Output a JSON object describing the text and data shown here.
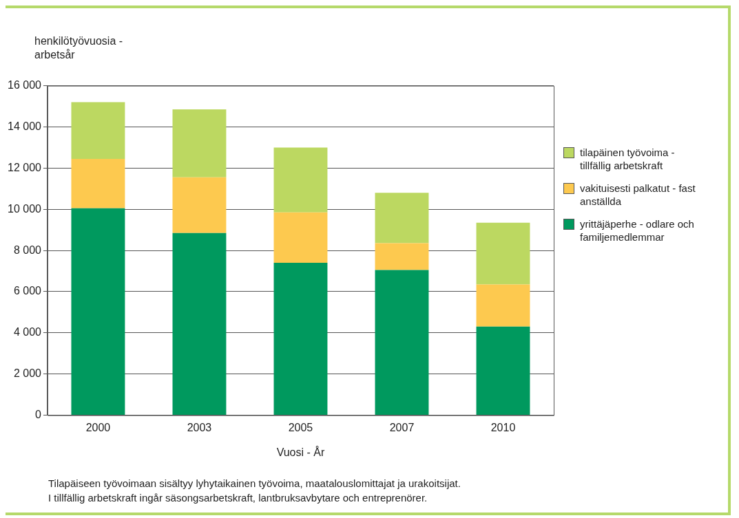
{
  "chart_data": {
    "type": "bar",
    "stacked": true,
    "ylabel": "henkilötyövuosia - arbetsår",
    "xlabel": "Vuosi - År",
    "categories": [
      "2000",
      "2003",
      "2005",
      "2007",
      "2010"
    ],
    "series": [
      {
        "name": "yrittäjäperhe - odlare och familjemedlemmar",
        "color": "#00995e",
        "values": [
          10050,
          8850,
          7400,
          7050,
          4300
        ]
      },
      {
        "name": "vakituisesti palkatut - fast anställda",
        "color": "#fdc94f",
        "values": [
          2400,
          2700,
          2450,
          1300,
          2050
        ]
      },
      {
        "name": "tilapäinen työvoima - tillfällig arbetskraft",
        "color": "#bcd861",
        "values": [
          2750,
          3300,
          3150,
          2450,
          3000
        ]
      }
    ],
    "ylim": [
      0,
      16000
    ],
    "yticks": [
      {
        "value": 0,
        "label": "0"
      },
      {
        "value": 2000,
        "label": "2 000"
      },
      {
        "value": 4000,
        "label": "4 000"
      },
      {
        "value": 6000,
        "label": "6 000"
      },
      {
        "value": 8000,
        "label": "8 000"
      },
      {
        "value": 10000,
        "label": "10 000"
      },
      {
        "value": 12000,
        "label": "12 000"
      },
      {
        "value": 14000,
        "label": "14 000"
      },
      {
        "value": 16000,
        "label": "16 000"
      }
    ],
    "grid": "y",
    "legend": "right",
    "annotations": [
      "Tilapäiseen työvoimaan sisältyy lyhytaikainen työvoima, maatalouslomittajat ja urakoitsijat.",
      "I tillfällig arbetskraft ingår säsongsarbetskraft, lantbruksavbytare och entreprenörer."
    ]
  }
}
